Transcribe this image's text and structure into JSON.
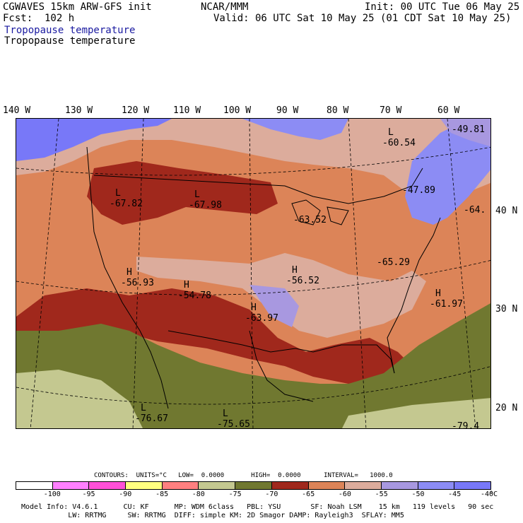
{
  "header": {
    "model": "CGWAVES 15km ARW-GFS init",
    "fcst": "Fcst:  102 h",
    "agency": "NCAR/MMM",
    "init": "Init: 00 UTC Tue 06 May 25",
    "valid": "Valid: 06 UTC Sat 10 May 25 (01 CDT Sat 10 May 25)",
    "field1": "Tropopause temperature",
    "field2": "Tropopause temperature"
  },
  "map": {
    "longitudes": [
      "140 W",
      "130 W",
      "120 W",
      "110 W",
      "100 W",
      "90 W",
      "80 W",
      "70 W",
      "60 W"
    ],
    "latitudes": [
      "40 N",
      "30 N",
      "20 N"
    ],
    "centers": [
      {
        "type": "L",
        "value": "-60.54"
      },
      {
        "type": "",
        "value": "-49.81"
      },
      {
        "type": "L",
        "value": "-67.82"
      },
      {
        "type": "L",
        "value": "-67.98"
      },
      {
        "type": "",
        "value": "-63.52"
      },
      {
        "type": "",
        "value": "-47.89"
      },
      {
        "type": "",
        "value": "-64."
      },
      {
        "type": "H",
        "value": "-56.93"
      },
      {
        "type": "H",
        "value": "-54.78"
      },
      {
        "type": "H",
        "value": "-56.52"
      },
      {
        "type": "H",
        "value": "-63.97"
      },
      {
        "type": "",
        "value": "-65.29"
      },
      {
        "type": "H",
        "value": "-61.97"
      },
      {
        "type": "L",
        "value": "-76.67"
      },
      {
        "type": "L",
        "value": "-75.65"
      },
      {
        "type": "",
        "value": "-79.4"
      }
    ],
    "colors": {
      "c_m40": "#7878f8",
      "c_m45": "#8c8cf4",
      "c_m50": "#a898e0",
      "c_m55": "#dcac9c",
      "c_m60": "#dc8458",
      "c_m65": "#a0281c",
      "c_m70": "#707830",
      "c_m75": "#c4c890",
      "border": "#000000"
    }
  },
  "contours": {
    "text": "CONTOURS:  UNITS=°C   LOW=  0.0000       HIGH=  0.0000      INTERVAL=   1000.0"
  },
  "legend": {
    "colors": [
      "#ffffff",
      "#ff80ff",
      "#ff50d8",
      "#ffff80",
      "#ff8080",
      "#c4c890",
      "#707830",
      "#a0281c",
      "#dc8458",
      "#dcac9c",
      "#a898e0",
      "#8c8cf4",
      "#7878f8"
    ],
    "ticks": [
      "-100",
      "-95",
      "-90",
      "-85",
      "-80",
      "-75",
      "-70",
      "-65",
      "-60",
      "-55",
      "-50",
      "-45",
      "-40",
      "°C"
    ]
  },
  "footer": {
    "line1": "Model Info: V4.6.1      CU: KF      MP: WDM 6class   PBL: YSU       SF: Noah LSM    15 km   119 levels   90 sec",
    "line2": "           LW: RRTMG     SW: RRTMG  DIFF: simple KM: 2D Smagor DAMP: Rayleigh3  SFLAY: MM5"
  }
}
